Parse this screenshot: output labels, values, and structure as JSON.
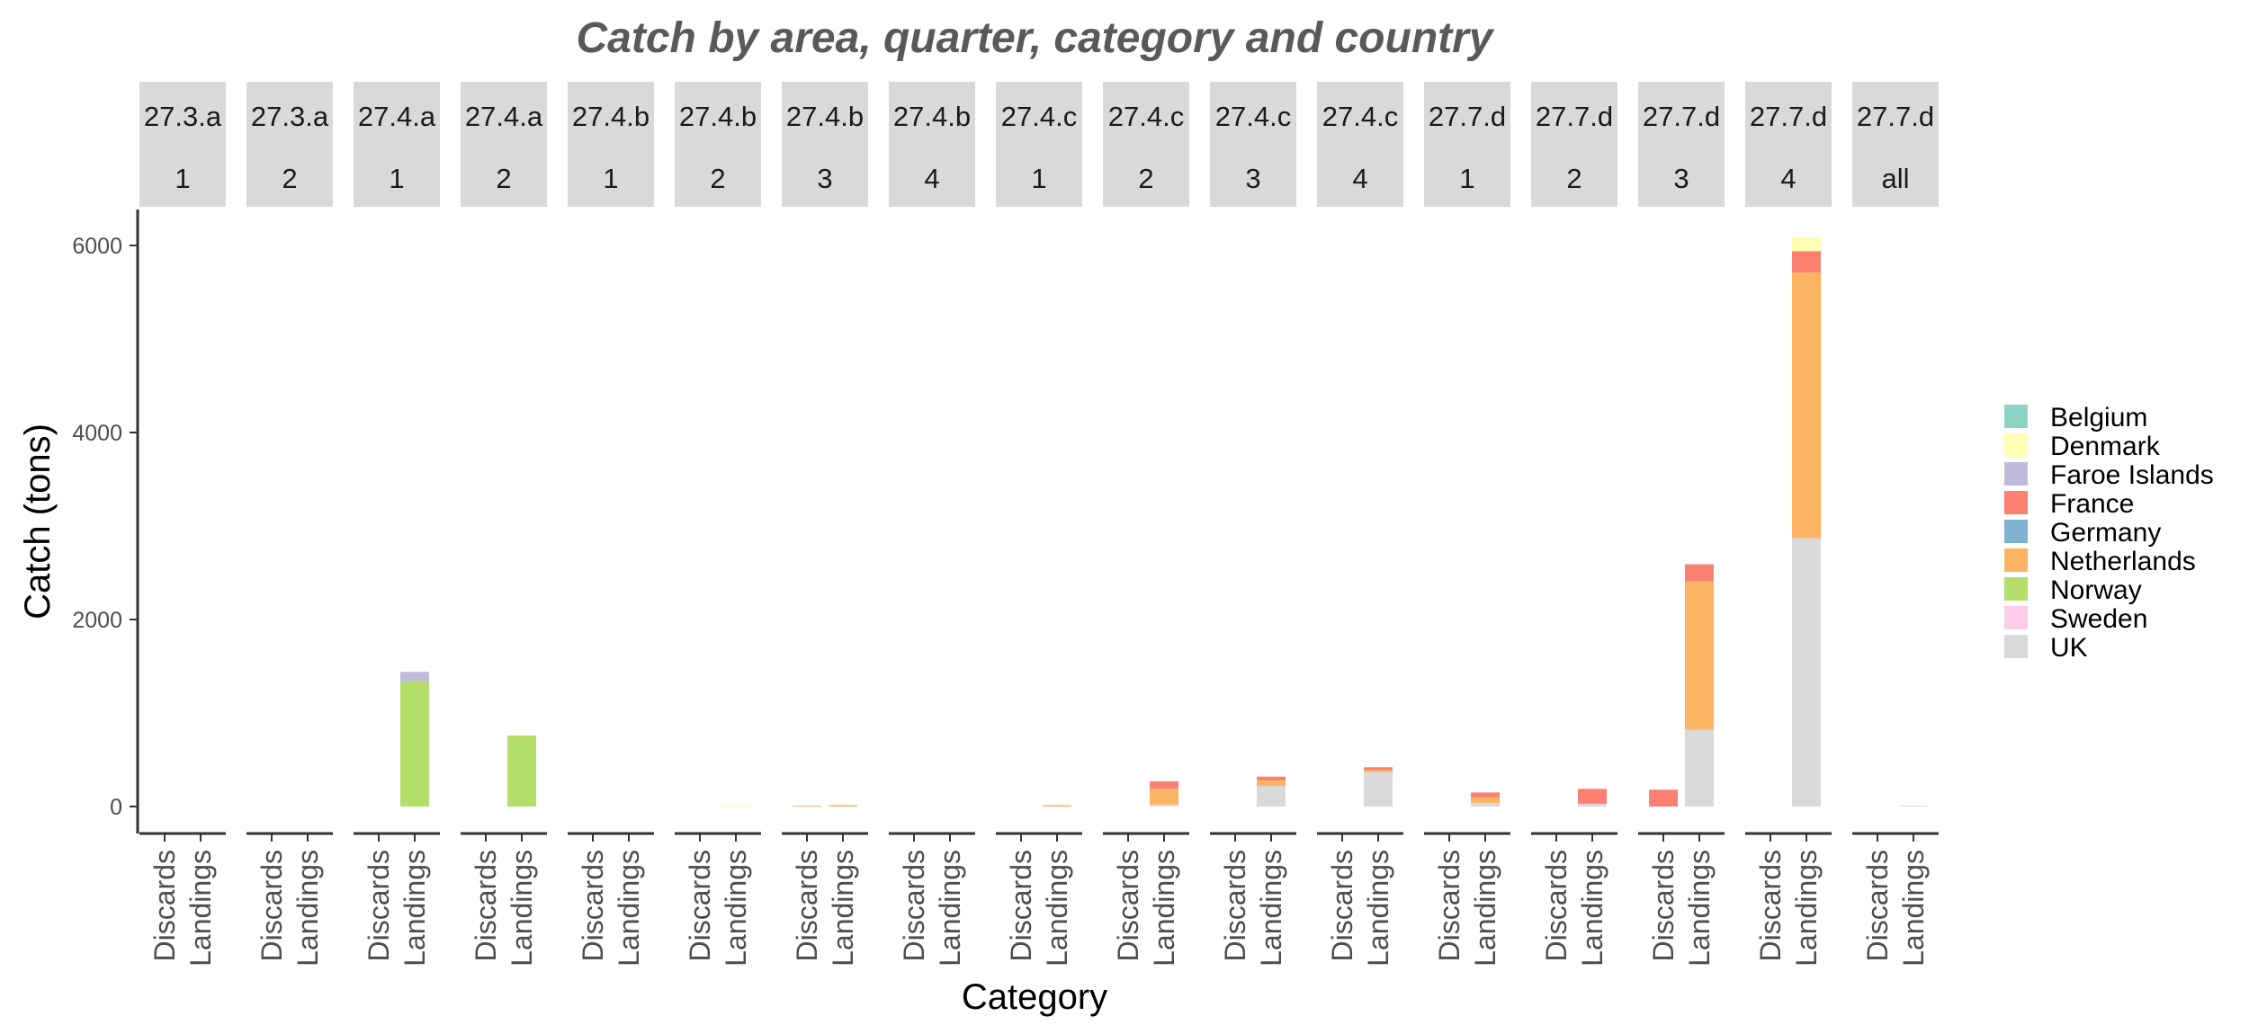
{
  "chart_data": {
    "type": "bar",
    "stacked": true,
    "title": "Catch by area, quarter, category and country",
    "xlabel": "Category",
    "ylabel": "Catch (tons)",
    "ylim": [
      -300,
      6400
    ],
    "y_ticks": [
      0,
      2000,
      4000,
      6000
    ],
    "grid": false,
    "legend_position": "right",
    "categories": [
      "Discards",
      "Landings"
    ],
    "countries": [
      "Belgium",
      "Denmark",
      "Faroe Islands",
      "France",
      "Germany",
      "Netherlands",
      "Norway",
      "Sweden",
      "UK"
    ],
    "colors": {
      "Belgium": "#8DD3C7",
      "Denmark": "#FFFFB3",
      "Faroe Islands": "#BEBADA",
      "France": "#FB8072",
      "Germany": "#80B1D3",
      "Netherlands": "#FDB462",
      "Norway": "#B3DE69",
      "Sweden": "#FCCDE5",
      "UK": "#D9D9D9"
    },
    "panels": [
      {
        "area": "27.3.a",
        "quarter": "1",
        "bars": {
          "Discards": {},
          "Landings": {}
        }
      },
      {
        "area": "27.3.a",
        "quarter": "2",
        "bars": {
          "Discards": {},
          "Landings": {}
        }
      },
      {
        "area": "27.4.a",
        "quarter": "1",
        "bars": {
          "Discards": {},
          "Landings": {
            "Norway": 1340,
            "Faroe Islands": 100
          }
        }
      },
      {
        "area": "27.4.a",
        "quarter": "2",
        "bars": {
          "Discards": {},
          "Landings": {
            "Norway": 760
          }
        }
      },
      {
        "area": "27.4.b",
        "quarter": "1",
        "bars": {
          "Discards": {},
          "Landings": {}
        }
      },
      {
        "area": "27.4.b",
        "quarter": "2",
        "bars": {
          "Discards": {},
          "Landings": {
            "Denmark": 15
          }
        }
      },
      {
        "area": "27.4.b",
        "quarter": "3",
        "bars": {
          "Discards": {
            "Netherlands": 10
          },
          "Landings": {
            "Netherlands": 15
          }
        }
      },
      {
        "area": "27.4.b",
        "quarter": "4",
        "bars": {
          "Discards": {},
          "Landings": {}
        }
      },
      {
        "area": "27.4.c",
        "quarter": "1",
        "bars": {
          "Discards": {},
          "Landings": {
            "Netherlands": 15
          }
        }
      },
      {
        "area": "27.4.c",
        "quarter": "2",
        "bars": {
          "Discards": {},
          "Landings": {
            "UK": 20,
            "Netherlands": 170,
            "France": 80
          }
        }
      },
      {
        "area": "27.4.c",
        "quarter": "3",
        "bars": {
          "Discards": {},
          "Landings": {
            "UK": 220,
            "Netherlands": 60,
            "France": 40
          }
        }
      },
      {
        "area": "27.4.c",
        "quarter": "4",
        "bars": {
          "Discards": {},
          "Landings": {
            "UK": 370,
            "Netherlands": 20,
            "France": 30
          }
        }
      },
      {
        "area": "27.7.d",
        "quarter": "1",
        "bars": {
          "Discards": {},
          "Landings": {
            "UK": 40,
            "Netherlands": 60,
            "France": 50
          }
        }
      },
      {
        "area": "27.7.d",
        "quarter": "2",
        "bars": {
          "Discards": {},
          "Landings": {
            "UK": 30,
            "France": 160
          }
        }
      },
      {
        "area": "27.7.d",
        "quarter": "3",
        "bars": {
          "Discards": {
            "France": 180
          },
          "Landings": {
            "UK": 820,
            "Netherlands": 1590,
            "France": 180
          }
        }
      },
      {
        "area": "27.7.d",
        "quarter": "4",
        "bars": {
          "Discards": {},
          "Landings": {
            "UK": 2870,
            "Netherlands": 2840,
            "France": 230,
            "Denmark": 150
          }
        }
      },
      {
        "area": "27.7.d",
        "quarter": "all",
        "bars": {
          "Discards": {},
          "Landings": {
            "UK": 10
          }
        }
      }
    ]
  }
}
